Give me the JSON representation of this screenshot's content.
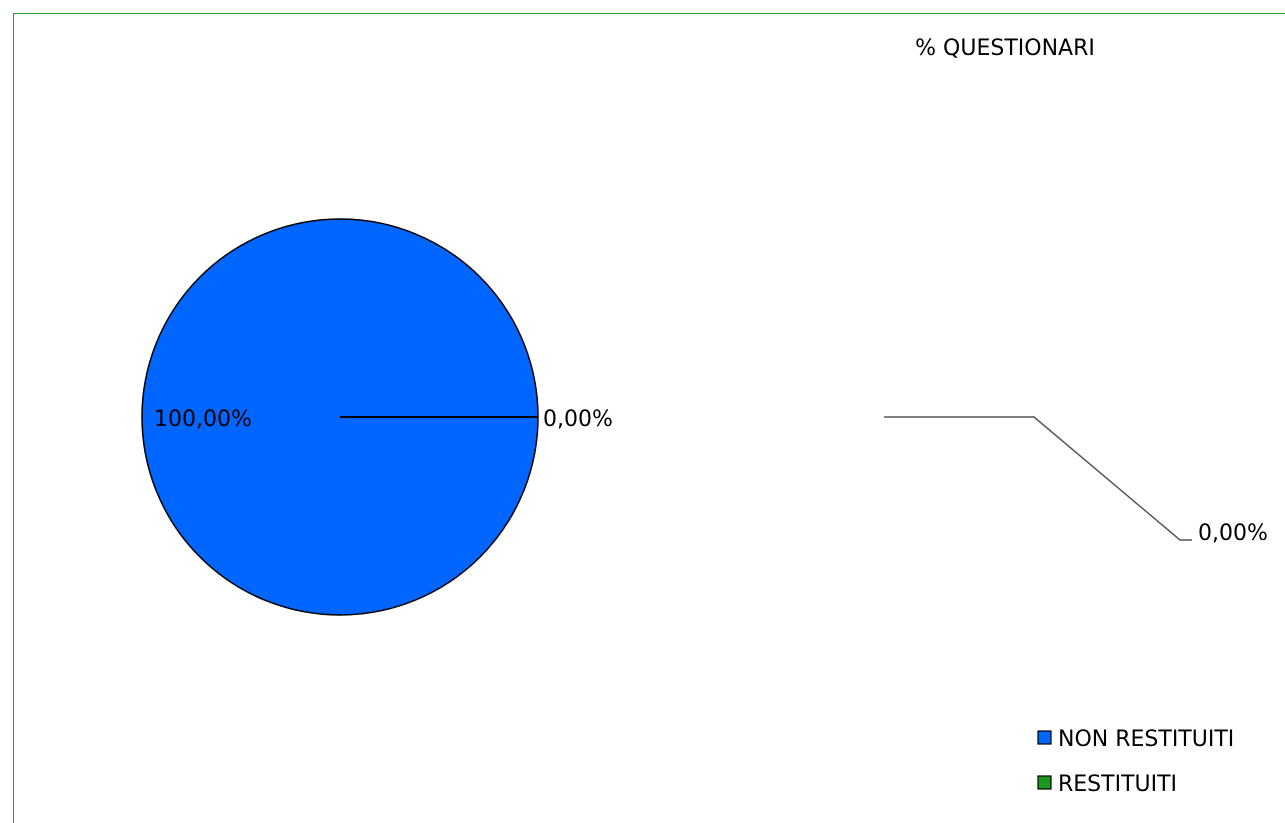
{
  "chart_data": {
    "type": "pie",
    "title": "% QUESTIONARI",
    "categories": [
      "NON RESTITUITI",
      "RESTITUITI"
    ],
    "values": [
      100,
      0
    ],
    "data_labels": [
      "100,00%",
      "0,00%"
    ],
    "secondary_labels": [
      "0,00%",
      "0,00%"
    ],
    "colors": [
      "#0066ff",
      "#1a9a1a"
    ],
    "legend_position": "bottom-right",
    "grid": false
  }
}
